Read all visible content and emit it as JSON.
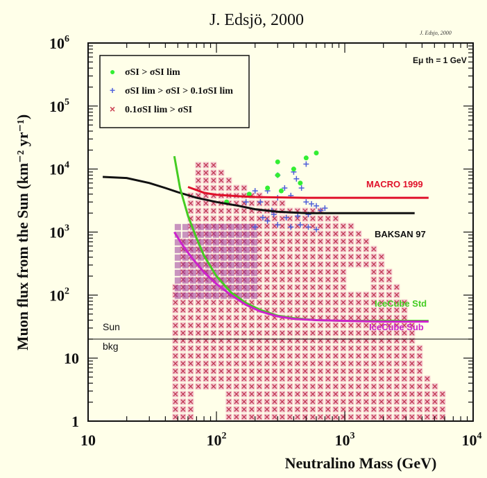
{
  "chart_data": {
    "type": "scatter",
    "title": "J. Edsjö, 2000",
    "corner_note": "J. Edsjo, 2000",
    "xlabel": "Neutralino Mass (GeV)",
    "ylabel": "Muon flux from the Sun (km⁻² yr⁻¹)",
    "xscale": "log",
    "yscale": "log",
    "xlim": [
      10,
      10000
    ],
    "ylim": [
      1,
      1000000
    ],
    "x_ticks": [
      {
        "value": 10,
        "label": "10",
        "exp": ""
      },
      {
        "value": 100,
        "label": "10",
        "exp": "2"
      },
      {
        "value": 1000,
        "label": "10",
        "exp": "3"
      },
      {
        "value": 10000,
        "label": "10",
        "exp": "4"
      }
    ],
    "y_ticks": [
      {
        "value": 1,
        "label": "1",
        "exp": ""
      },
      {
        "value": 10,
        "label": "10",
        "exp": ""
      },
      {
        "value": 100,
        "label": "10",
        "exp": "2"
      },
      {
        "value": 1000,
        "label": "10",
        "exp": "3"
      },
      {
        "value": 10000,
        "label": "10",
        "exp": "4"
      },
      {
        "value": 100000,
        "label": "10",
        "exp": "5"
      },
      {
        "value": 1000000,
        "label": "10",
        "exp": "6"
      }
    ],
    "threshold_label": "Eμ th = 1 GeV",
    "legend": {
      "placement": "top-left",
      "entries": [
        {
          "symbol": "●",
          "color": "#33ee33",
          "text": "σSI > σSI lim"
        },
        {
          "symbol": "+",
          "color": "#5566dd",
          "text": "σSI lim > σSI > 0.1σSI lim"
        },
        {
          "symbol": "×",
          "color": "#cc4455",
          "text": "0.1σSI lim > σSI"
        }
      ]
    },
    "series": [
      {
        "name": "MACRO 1999",
        "color": "#e0102a",
        "kind": "limit",
        "x": [
          60,
          80,
          100,
          150,
          200,
          300,
          500,
          1000,
          2000,
          4500
        ],
        "y": [
          5200,
          4200,
          3900,
          3700,
          3600,
          3550,
          3500,
          3500,
          3500,
          3500
        ]
      },
      {
        "name": "BAKSAN 97",
        "color": "#111111",
        "kind": "limit",
        "x": [
          13,
          20,
          30,
          40,
          50,
          70,
          100,
          150,
          200,
          300,
          500,
          1000,
          2000,
          3500
        ],
        "y": [
          7500,
          7200,
          6000,
          5000,
          4300,
          3500,
          3000,
          2600,
          2300,
          2100,
          2000,
          2000,
          2000,
          2000
        ]
      },
      {
        "name": "IceCube Std",
        "color": "#44cc22",
        "kind": "sensitivity",
        "x": [
          47,
          52,
          60,
          70,
          80,
          100,
          130,
          170,
          220,
          300,
          400,
          600,
          1000,
          2000,
          4500
        ],
        "y": [
          16000,
          5000,
          1800,
          800,
          420,
          200,
          110,
          75,
          58,
          47,
          43,
          40,
          39,
          39,
          39
        ]
      },
      {
        "name": "IceCube Sub",
        "color": "#cc22cc",
        "kind": "sensitivity",
        "x": [
          47,
          55,
          65,
          80,
          100,
          130,
          170,
          220,
          300,
          400,
          600,
          1000,
          2000,
          4500
        ],
        "y": [
          1000,
          600,
          380,
          230,
          150,
          100,
          70,
          55,
          46,
          42,
          40,
          39,
          38,
          38
        ]
      },
      {
        "name": "Sun bkg",
        "label_top": "Sun",
        "label_bottom": "bkg",
        "color": "#222222",
        "kind": "background",
        "x": [
          10,
          10000
        ],
        "y": [
          20,
          20
        ]
      }
    ],
    "scatter_points": {
      "green": {
        "x": [
          120,
          180,
          250,
          300,
          300,
          320,
          400,
          450,
          500,
          600
        ],
        "y": [
          3000,
          4000,
          5000,
          8000,
          13000,
          4500,
          10000,
          6000,
          15000,
          18000
        ]
      },
      "blue": {
        "x": [
          170,
          200,
          220,
          250,
          270,
          300,
          340,
          380,
          420,
          460,
          500,
          550,
          600,
          650,
          700,
          200,
          250,
          300,
          380,
          450,
          520,
          600,
          230,
          280,
          350,
          430,
          520,
          300,
          400,
          500
        ],
        "y": [
          3000,
          4500,
          3000,
          4500,
          2200,
          3500,
          5000,
          3800,
          7000,
          5000,
          3000,
          2800,
          2600,
          2200,
          2400,
          1200,
          1500,
          1300,
          1200,
          1300,
          1200,
          1100,
          1700,
          1900,
          1700,
          1800,
          1900,
          8000,
          9000,
          12000
        ]
      },
      "red_region": {
        "x_min": 45,
        "x_max": 6500,
        "y_min": 1,
        "y_max_profile": [
          [
            45,
            80
          ],
          [
            70,
            15000
          ],
          [
            100,
            12000
          ],
          [
            150,
            6000
          ],
          [
            300,
            3000
          ],
          [
            600,
            2500
          ],
          [
            1000,
            1500
          ],
          [
            1500,
            900
          ],
          [
            2000,
            400
          ],
          [
            3000,
            70
          ],
          [
            4500,
            5
          ],
          [
            6500,
            3
          ]
        ]
      }
    },
    "grid": false
  }
}
